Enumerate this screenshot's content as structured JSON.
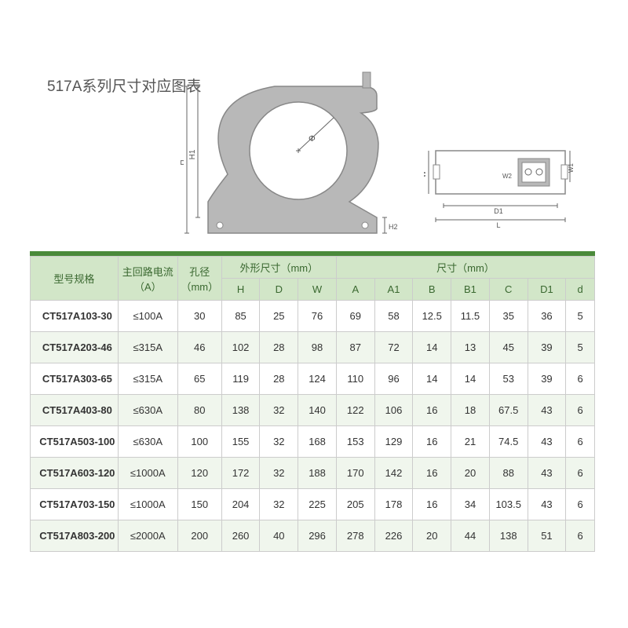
{
  "title": "517A系列尺寸对应图表",
  "diagram": {
    "front_labels": {
      "H": "H",
      "H1": "H1",
      "H2": "H2",
      "phi": "Φ"
    },
    "side_labels": {
      "W": "W",
      "W1": "W1",
      "W2": "W2",
      "D1": "D1",
      "L": "L"
    }
  },
  "table": {
    "headers": {
      "model": "型号规格",
      "current": "主回路电流\n（A）",
      "aperture": "孔径\n（mm）",
      "outer_group": "外形尺寸（mm）",
      "size_group": "尺寸（mm）",
      "H": "H",
      "D": "D",
      "W": "W",
      "A": "A",
      "A1": "A1",
      "B": "B",
      "B1": "B1",
      "C": "C",
      "D1": "D1",
      "d": "d"
    },
    "rows": [
      {
        "model": "CT517A103-30",
        "current": "≤100A",
        "aperture": "30",
        "H": "85",
        "D": "25",
        "W": "76",
        "A": "69",
        "A1": "58",
        "B": "12.5",
        "B1": "11.5",
        "C": "35",
        "D1": "36",
        "d": "5"
      },
      {
        "model": "CT517A203-46",
        "current": "≤315A",
        "aperture": "46",
        "H": "102",
        "D": "28",
        "W": "98",
        "A": "87",
        "A1": "72",
        "B": "14",
        "B1": "13",
        "C": "45",
        "D1": "39",
        "d": "5"
      },
      {
        "model": "CT517A303-65",
        "current": "≤315A",
        "aperture": "65",
        "H": "119",
        "D": "28",
        "W": "124",
        "A": "110",
        "A1": "96",
        "B": "14",
        "B1": "14",
        "C": "53",
        "D1": "39",
        "d": "6"
      },
      {
        "model": "CT517A403-80",
        "current": "≤630A",
        "aperture": "80",
        "H": "138",
        "D": "32",
        "W": "140",
        "A": "122",
        "A1": "106",
        "B": "16",
        "B1": "18",
        "C": "67.5",
        "D1": "43",
        "d": "6"
      },
      {
        "model": "CT517A503-100",
        "current": "≤630A",
        "aperture": "100",
        "H": "155",
        "D": "32",
        "W": "168",
        "A": "153",
        "A1": "129",
        "B": "16",
        "B1": "21",
        "C": "74.5",
        "D1": "43",
        "d": "6"
      },
      {
        "model": "CT517A603-120",
        "current": "≤1000A",
        "aperture": "120",
        "H": "172",
        "D": "32",
        "W": "188",
        "A": "170",
        "A1": "142",
        "B": "16",
        "B1": "20",
        "C": "88",
        "D1": "43",
        "d": "6"
      },
      {
        "model": "CT517A703-150",
        "current": "≤1000A",
        "aperture": "150",
        "H": "204",
        "D": "32",
        "W": "225",
        "A": "205",
        "A1": "178",
        "B": "16",
        "B1": "34",
        "C": "103.5",
        "D1": "43",
        "d": "6"
      },
      {
        "model": "CT517A803-200",
        "current": "≤2000A",
        "aperture": "200",
        "H": "260",
        "D": "40",
        "W": "296",
        "A": "278",
        "A1": "226",
        "B": "20",
        "B1": "44",
        "C": "138",
        "D1": "51",
        "d": "6"
      }
    ]
  },
  "colors": {
    "device_fill": "#b8b8b8",
    "device_stroke": "#888888",
    "dim_line": "#666666",
    "header_bg": "#d2e6c8",
    "header_text": "#3a6830",
    "divider": "#4a8a3a"
  }
}
